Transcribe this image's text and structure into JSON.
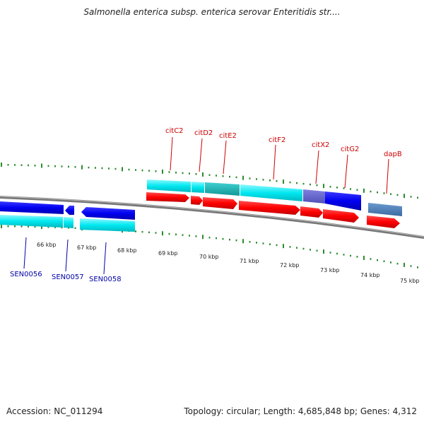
{
  "title": "Salmonella enterica subsp. enterica serovar Enteritidis str....",
  "ruler_labels": [
    "66 kbp",
    "67 kbp",
    "68 kbp",
    "69 kbp",
    "70 kbp",
    "71 kbp",
    "72 kbp",
    "73 kbp",
    "74 kbp",
    "75 kbp"
  ],
  "top_gene_labels": [
    "citC2",
    "citD2",
    "citE2",
    "citF2",
    "citX2",
    "citG2",
    "dapB"
  ],
  "bottom_gene_labels": [
    "SEN0056",
    "SEN0057",
    "SEN0058"
  ],
  "footer": {
    "accession": "Accession: NC_011294",
    "info": "Topology: circular; Length: 4,685,848 bp; Genes: 4,312"
  },
  "colors": {
    "forward_cds": "#ff0000",
    "forward_gene": "#00e5ee",
    "reverse_cds": "#0000ee",
    "tick": "#2e8b2e",
    "backbone": "#888888",
    "top_label": "#cc0000",
    "bottom_label": "#0000aa"
  }
}
